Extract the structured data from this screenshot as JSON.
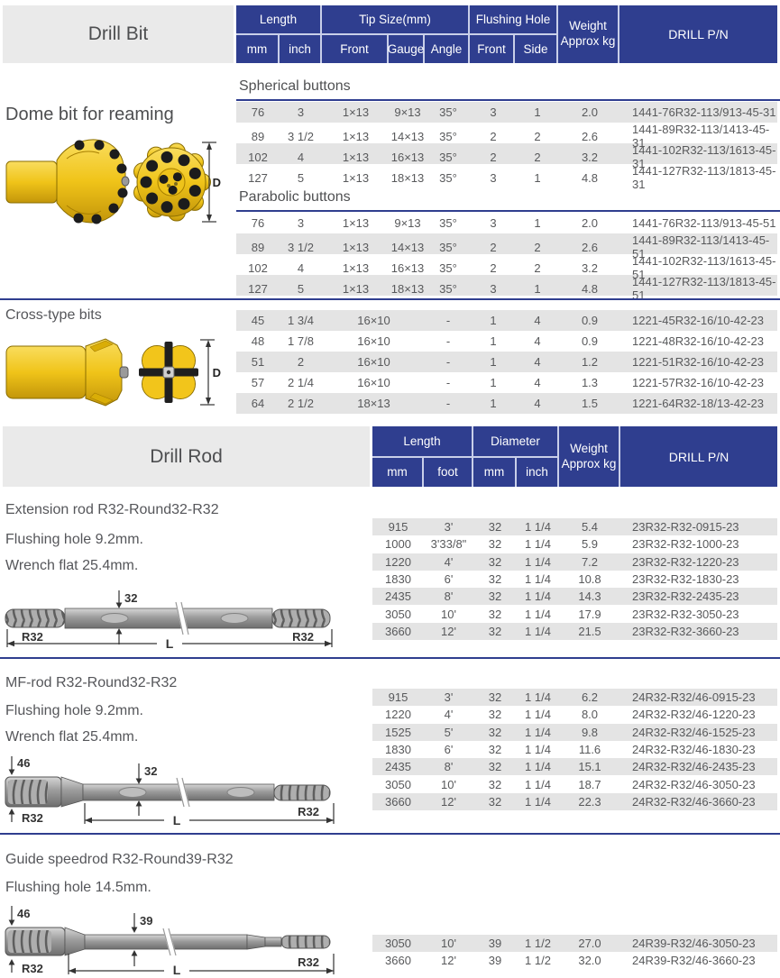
{
  "colors": {
    "header_blue": "#2f3e8f",
    "row_shade": "#e4e4e4",
    "panel_gray": "#eaeaea",
    "bit_yellow": "#f2c51b",
    "text_gray": "#58595b"
  },
  "drill_bit": {
    "panel_title": "Drill Bit",
    "header": {
      "length": "Length",
      "tip_size": "Tip Size(mm)",
      "flushing_hole": "Flushing Hole",
      "weight_l1": "Weight",
      "weight_l2": "Approx kg",
      "drill_pn": "DRILL P/N",
      "mm": "mm",
      "inch": "inch",
      "front": "Front",
      "gauge": "Gauge",
      "angle": "Angle",
      "fh_front": "Front",
      "fh_side": "Side"
    },
    "dome_label": "Dome bit for reaming",
    "spherical": {
      "heading": "Spherical buttons",
      "rows": [
        [
          "76",
          "3",
          "1×13",
          "9×13",
          "35°",
          "3",
          "1",
          "2.0",
          "1441-76R32-113/913-45-31"
        ],
        [
          "89",
          "3 1/2",
          "1×13",
          "14×13",
          "35°",
          "2",
          "2",
          "2.6",
          "1441-89R32-113/1413-45-31"
        ],
        [
          "102",
          "4",
          "1×13",
          "16×13",
          "35°",
          "2",
          "2",
          "3.2",
          "1441-102R32-113/1613-45-31"
        ],
        [
          "127",
          "5",
          "1×13",
          "18×13",
          "35°",
          "3",
          "1",
          "4.8",
          "1441-127R32-113/1813-45-31"
        ]
      ]
    },
    "parabolic": {
      "heading": "Parabolic buttons",
      "rows": [
        [
          "76",
          "3",
          "1×13",
          "9×13",
          "35°",
          "3",
          "1",
          "2.0",
          "1441-76R32-113/913-45-51"
        ],
        [
          "89",
          "3 1/2",
          "1×13",
          "14×13",
          "35°",
          "2",
          "2",
          "2.6",
          "1441-89R32-113/1413-45-51"
        ],
        [
          "102",
          "4",
          "1×13",
          "16×13",
          "35°",
          "2",
          "2",
          "3.2",
          "1441-102R32-113/1613-45-51"
        ],
        [
          "127",
          "5",
          "1×13",
          "18×13",
          "35°",
          "3",
          "1",
          "4.8",
          "1441-127R32-113/1813-45-51"
        ]
      ]
    },
    "cross": {
      "heading": "Cross-type bits",
      "rows": [
        [
          "45",
          "1 3/4",
          "16×10",
          "-",
          "1",
          "4",
          "0.9",
          "1221-45R32-16/10-42-23"
        ],
        [
          "48",
          "1 7/8",
          "16×10",
          "-",
          "1",
          "4",
          "0.9",
          "1221-48R32-16/10-42-23"
        ],
        [
          "51",
          "2",
          "16×10",
          "-",
          "1",
          "4",
          "1.2",
          "1221-51R32-16/10-42-23"
        ],
        [
          "57",
          "2 1/4",
          "16×10",
          "-",
          "1",
          "4",
          "1.3",
          "1221-57R32-16/10-42-23"
        ],
        [
          "64",
          "2 1/2",
          "18×13",
          "-",
          "1",
          "4",
          "1.5",
          "1221-64R32-18/13-42-23"
        ]
      ]
    },
    "dome_diagram": {
      "dim": "D"
    },
    "cross_diagram": {
      "dim": "D"
    }
  },
  "drill_rod": {
    "panel_title": "Drill Rod",
    "header": {
      "length": "Length",
      "diameter": "Diameter",
      "weight_l1": "Weight",
      "weight_l2": "Approx kg",
      "drill_pn": "DRILL P/N",
      "mm_len": "mm",
      "foot": "foot",
      "mm_dia": "mm",
      "inch": "inch"
    },
    "extension": {
      "title": "Extension rod R32-Round32-R32",
      "note1": "Flushing hole 9.2mm.",
      "note2": "Wrench flat 25.4mm.",
      "diagram": {
        "top_dim": "32",
        "left_label": "R32",
        "right_label": "R32",
        "length": "L"
      },
      "rows": [
        [
          "915",
          "3'",
          "32",
          "1 1/4",
          "5.4",
          "23R32-R32-0915-23"
        ],
        [
          "1000",
          "3'33/8\"",
          "32",
          "1 1/4",
          "5.9",
          "23R32-R32-1000-23"
        ],
        [
          "1220",
          "4'",
          "32",
          "1 1/4",
          "7.2",
          "23R32-R32-1220-23"
        ],
        [
          "1830",
          "6'",
          "32",
          "1 1/4",
          "10.8",
          "23R32-R32-1830-23"
        ],
        [
          "2435",
          "8'",
          "32",
          "1 1/4",
          "14.3",
          "23R32-R32-2435-23"
        ],
        [
          "3050",
          "10'",
          "32",
          "1 1/4",
          "17.9",
          "23R32-R32-3050-23"
        ],
        [
          "3660",
          "12'",
          "32",
          "1 1/4",
          "21.5",
          "23R32-R32-3660-23"
        ]
      ]
    },
    "mf": {
      "title": "MF-rod R32-Round32-R32",
      "note1": "Flushing hole 9.2mm.",
      "note2": "Wrench flat 25.4mm.",
      "diagram": {
        "left_dim": "46",
        "top_dim": "32",
        "left_label": "R32",
        "right_label": "R32",
        "length": "L"
      },
      "rows": [
        [
          "915",
          "3'",
          "32",
          "1 1/4",
          "6.2",
          "24R32-R32/46-0915-23"
        ],
        [
          "1220",
          "4'",
          "32",
          "1 1/4",
          "8.0",
          "24R32-R32/46-1220-23"
        ],
        [
          "1525",
          "5'",
          "32",
          "1 1/4",
          "9.8",
          "24R32-R32/46-1525-23"
        ],
        [
          "1830",
          "6'",
          "32",
          "1 1/4",
          "11.6",
          "24R32-R32/46-1830-23"
        ],
        [
          "2435",
          "8'",
          "32",
          "1 1/4",
          "15.1",
          "24R32-R32/46-2435-23"
        ],
        [
          "3050",
          "10'",
          "32",
          "1 1/4",
          "18.7",
          "24R32-R32/46-3050-23"
        ],
        [
          "3660",
          "12'",
          "32",
          "1 1/4",
          "22.3",
          "24R32-R32/46-3660-23"
        ]
      ]
    },
    "guide": {
      "title": "Guide speedrod R32-Round39-R32",
      "note1": "Flushing hole 14.5mm.",
      "diagram": {
        "left_dim": "46",
        "top_dim": "39",
        "left_label": "R32",
        "right_label": "R32",
        "length": "L"
      },
      "rows": [
        [
          "3050",
          "10'",
          "39",
          "1 1/2",
          "27.0",
          "24R39-R32/46-3050-23"
        ],
        [
          "3660",
          "12'",
          "39",
          "1 1/2",
          "32.0",
          "24R39-R32/46-3660-23"
        ]
      ]
    }
  }
}
